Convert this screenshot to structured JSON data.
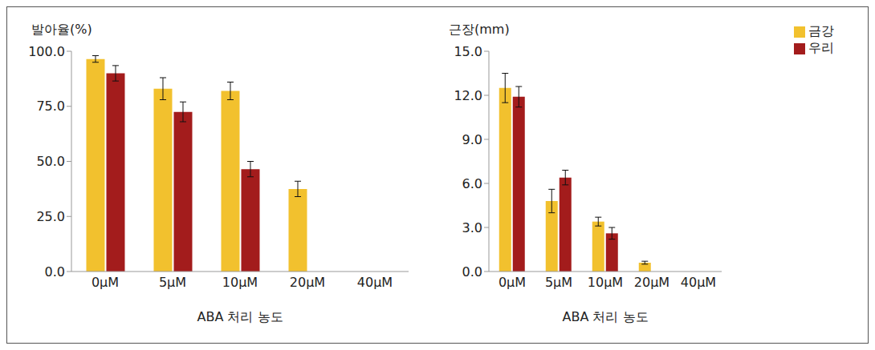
{
  "chart_data": [
    {
      "type": "bar",
      "y_label": "발아율(%)",
      "x_label": "ABA 처리 농도",
      "categories": [
        "0μM",
        "5μM",
        "10μM",
        "20μM",
        "40μM"
      ],
      "series": [
        {
          "name": "금강",
          "color": "#f2c12e",
          "values": [
            96.5,
            83,
            82,
            37.5,
            0
          ],
          "errors": [
            1.5,
            5,
            4,
            3.5,
            0
          ]
        },
        {
          "name": "우리",
          "color": "#a31c1c",
          "values": [
            90,
            72.5,
            46.5,
            0,
            0
          ],
          "errors": [
            3.5,
            4.5,
            3.5,
            0,
            0
          ]
        }
      ],
      "ylim": [
        0,
        100
      ],
      "yticks": [
        {
          "value": 0,
          "label": "0.0"
        },
        {
          "value": 25,
          "label": "25.0"
        },
        {
          "value": 50,
          "label": "50.0"
        },
        {
          "value": 75,
          "label": "75.0"
        },
        {
          "value": 100,
          "label": "100.0"
        }
      ],
      "grid": false
    },
    {
      "type": "bar",
      "y_label": "근장(mm)",
      "x_label": "ABA 처리 농도",
      "categories": [
        "0μM",
        "5μM",
        "10μM",
        "20μM",
        "40μM"
      ],
      "series": [
        {
          "name": "금강",
          "color": "#f2c12e",
          "values": [
            12.5,
            4.8,
            3.4,
            0.6,
            0
          ],
          "errors": [
            1.0,
            0.8,
            0.3,
            0.1,
            0
          ]
        },
        {
          "name": "우리",
          "color": "#a31c1c",
          "values": [
            11.9,
            6.4,
            2.6,
            0,
            0
          ],
          "errors": [
            0.7,
            0.5,
            0.4,
            0,
            0
          ]
        }
      ],
      "ylim": [
        0,
        15
      ],
      "yticks": [
        {
          "value": 0,
          "label": "0.0"
        },
        {
          "value": 3,
          "label": "3.0"
        },
        {
          "value": 6,
          "label": "6.0"
        },
        {
          "value": 9,
          "label": "9.0"
        },
        {
          "value": 12,
          "label": "12.0"
        },
        {
          "value": 15,
          "label": "15.0"
        }
      ],
      "grid": false,
      "legend": "upper right"
    }
  ]
}
